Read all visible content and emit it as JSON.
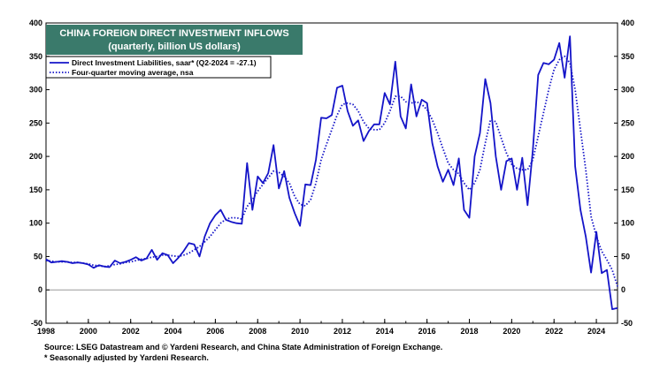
{
  "colors": {
    "series": "#1414c8",
    "title_box": "#3a7a6b",
    "title_text": "#ffffff",
    "zero_line": "#999999",
    "gridline": "none"
  },
  "chart_data": {
    "type": "line",
    "title": "CHINA FOREIGN DIRECT INVESTMENT INFLOWS",
    "subtitle": "(quarterly, billion US dollars)",
    "xlim": [
      1998,
      2025
    ],
    "ylim": [
      -50,
      400
    ],
    "x_ticks": [
      "1998",
      "2000",
      "2002",
      "2004",
      "2006",
      "2008",
      "2010",
      "2012",
      "2014",
      "2016",
      "2018",
      "2020",
      "2022",
      "2024"
    ],
    "y_ticks": [
      "400",
      "350",
      "300",
      "250",
      "200",
      "150",
      "100",
      "50",
      "0",
      "-50"
    ],
    "grid": false,
    "legend_position": "top-left",
    "series": [
      {
        "name": "Direct Investment Liabilities, saar* (Q2-2024 = -27.1)",
        "style": "solid",
        "points": [
          [
            1998.0,
            46
          ],
          [
            1998.25,
            41
          ],
          [
            1998.5,
            42
          ],
          [
            1998.75,
            43
          ],
          [
            1999.0,
            42
          ],
          [
            1999.25,
            40
          ],
          [
            1999.5,
            41
          ],
          [
            1999.75,
            40
          ],
          [
            2000.0,
            38
          ],
          [
            2000.25,
            33
          ],
          [
            2000.5,
            37
          ],
          [
            2000.75,
            35
          ],
          [
            2001.0,
            34
          ],
          [
            2001.25,
            44
          ],
          [
            2001.5,
            40
          ],
          [
            2001.75,
            42
          ],
          [
            2002.0,
            45
          ],
          [
            2002.25,
            49
          ],
          [
            2002.5,
            44
          ],
          [
            2002.75,
            47
          ],
          [
            2003.0,
            60
          ],
          [
            2003.25,
            45
          ],
          [
            2003.5,
            55
          ],
          [
            2003.75,
            52
          ],
          [
            2004.0,
            40
          ],
          [
            2004.25,
            48
          ],
          [
            2004.5,
            58
          ],
          [
            2004.75,
            70
          ],
          [
            2005.0,
            68
          ],
          [
            2005.25,
            50
          ],
          [
            2005.5,
            80
          ],
          [
            2005.75,
            100
          ],
          [
            2006.0,
            112
          ],
          [
            2006.25,
            120
          ],
          [
            2006.5,
            105
          ],
          [
            2006.75,
            102
          ],
          [
            2007.0,
            100
          ],
          [
            2007.25,
            99
          ],
          [
            2007.5,
            190
          ],
          [
            2007.75,
            120
          ],
          [
            2008.0,
            170
          ],
          [
            2008.25,
            160
          ],
          [
            2008.5,
            175
          ],
          [
            2008.75,
            217
          ],
          [
            2009.0,
            152
          ],
          [
            2009.25,
            178
          ],
          [
            2009.5,
            138
          ],
          [
            2009.75,
            115
          ],
          [
            2010.0,
            96
          ],
          [
            2010.25,
            158
          ],
          [
            2010.5,
            157
          ],
          [
            2010.75,
            195
          ],
          [
            2011.0,
            258
          ],
          [
            2011.25,
            257
          ],
          [
            2011.5,
            262
          ],
          [
            2011.75,
            303
          ],
          [
            2012.0,
            306
          ],
          [
            2012.25,
            268
          ],
          [
            2012.5,
            246
          ],
          [
            2012.75,
            254
          ],
          [
            2013.0,
            223
          ],
          [
            2013.25,
            238
          ],
          [
            2013.5,
            248
          ],
          [
            2013.75,
            248
          ],
          [
            2014.0,
            295
          ],
          [
            2014.25,
            278
          ],
          [
            2014.5,
            342
          ],
          [
            2014.75,
            260
          ],
          [
            2015.0,
            242
          ],
          [
            2015.25,
            308
          ],
          [
            2015.5,
            260
          ],
          [
            2015.75,
            285
          ],
          [
            2016.0,
            280
          ],
          [
            2016.25,
            220
          ],
          [
            2016.5,
            185
          ],
          [
            2016.75,
            162
          ],
          [
            2017.0,
            180
          ],
          [
            2017.25,
            157
          ],
          [
            2017.5,
            197
          ],
          [
            2017.75,
            120
          ],
          [
            2018.0,
            108
          ],
          [
            2018.25,
            200
          ],
          [
            2018.5,
            235
          ],
          [
            2018.75,
            316
          ],
          [
            2019.0,
            280
          ],
          [
            2019.25,
            200
          ],
          [
            2019.5,
            150
          ],
          [
            2019.75,
            193
          ],
          [
            2020.0,
            197
          ],
          [
            2020.25,
            150
          ],
          [
            2020.5,
            198
          ],
          [
            2020.75,
            127
          ],
          [
            2021.0,
            210
          ],
          [
            2021.25,
            322
          ],
          [
            2021.5,
            340
          ],
          [
            2021.75,
            338
          ],
          [
            2022.0,
            345
          ],
          [
            2022.25,
            370
          ],
          [
            2022.5,
            318
          ],
          [
            2022.75,
            380
          ],
          [
            2023.0,
            185
          ],
          [
            2023.25,
            120
          ],
          [
            2023.5,
            80
          ],
          [
            2023.75,
            26
          ],
          [
            2024.0,
            87
          ],
          [
            2024.25,
            25
          ],
          [
            2024.5,
            30
          ],
          [
            2024.75,
            -29
          ],
          [
            2025.0,
            -27.1
          ]
        ]
      },
      {
        "name": "Four-quarter moving average, nsa",
        "style": "dotted",
        "points": [
          [
            1998.0,
            44
          ],
          [
            1998.25,
            43
          ],
          [
            1998.5,
            42
          ],
          [
            1998.75,
            42
          ],
          [
            1999.0,
            42
          ],
          [
            1999.25,
            41
          ],
          [
            1999.5,
            41
          ],
          [
            1999.75,
            40
          ],
          [
            2000.0,
            39
          ],
          [
            2000.25,
            37
          ],
          [
            2000.5,
            36
          ],
          [
            2000.75,
            35
          ],
          [
            2001.0,
            36
          ],
          [
            2001.25,
            38
          ],
          [
            2001.5,
            39
          ],
          [
            2001.75,
            41
          ],
          [
            2002.0,
            42
          ],
          [
            2002.25,
            44
          ],
          [
            2002.5,
            46
          ],
          [
            2002.75,
            47
          ],
          [
            2003.0,
            49
          ],
          [
            2003.25,
            50
          ],
          [
            2003.5,
            52
          ],
          [
            2003.75,
            52
          ],
          [
            2004.0,
            51
          ],
          [
            2004.25,
            50
          ],
          [
            2004.5,
            52
          ],
          [
            2004.75,
            55
          ],
          [
            2005.0,
            60
          ],
          [
            2005.25,
            65
          ],
          [
            2005.5,
            72
          ],
          [
            2005.75,
            80
          ],
          [
            2006.0,
            90
          ],
          [
            2006.25,
            100
          ],
          [
            2006.5,
            106
          ],
          [
            2006.75,
            108
          ],
          [
            2007.0,
            108
          ],
          [
            2007.25,
            106
          ],
          [
            2007.5,
            125
          ],
          [
            2007.75,
            135
          ],
          [
            2008.0,
            148
          ],
          [
            2008.25,
            158
          ],
          [
            2008.5,
            168
          ],
          [
            2008.75,
            178
          ],
          [
            2009.0,
            176
          ],
          [
            2009.25,
            170
          ],
          [
            2009.5,
            160
          ],
          [
            2009.75,
            140
          ],
          [
            2010.0,
            128
          ],
          [
            2010.25,
            126
          ],
          [
            2010.5,
            135
          ],
          [
            2010.75,
            160
          ],
          [
            2011.0,
            195
          ],
          [
            2011.25,
            218
          ],
          [
            2011.5,
            240
          ],
          [
            2011.75,
            262
          ],
          [
            2012.0,
            278
          ],
          [
            2012.25,
            280
          ],
          [
            2012.5,
            278
          ],
          [
            2012.75,
            268
          ],
          [
            2013.0,
            252
          ],
          [
            2013.25,
            242
          ],
          [
            2013.5,
            240
          ],
          [
            2013.75,
            240
          ],
          [
            2014.0,
            250
          ],
          [
            2014.25,
            268
          ],
          [
            2014.5,
            290
          ],
          [
            2014.75,
            290
          ],
          [
            2015.0,
            282
          ],
          [
            2015.25,
            280
          ],
          [
            2015.5,
            282
          ],
          [
            2015.75,
            278
          ],
          [
            2016.0,
            270
          ],
          [
            2016.25,
            255
          ],
          [
            2016.5,
            235
          ],
          [
            2016.75,
            212
          ],
          [
            2017.0,
            190
          ],
          [
            2017.25,
            180
          ],
          [
            2017.5,
            174
          ],
          [
            2017.75,
            160
          ],
          [
            2018.0,
            150
          ],
          [
            2018.25,
            160
          ],
          [
            2018.5,
            180
          ],
          [
            2018.75,
            220
          ],
          [
            2019.0,
            255
          ],
          [
            2019.25,
            252
          ],
          [
            2019.5,
            228
          ],
          [
            2019.75,
            205
          ],
          [
            2020.0,
            188
          ],
          [
            2020.25,
            182
          ],
          [
            2020.5,
            180
          ],
          [
            2020.75,
            180
          ],
          [
            2021.0,
            195
          ],
          [
            2021.25,
            230
          ],
          [
            2021.5,
            265
          ],
          [
            2021.75,
            300
          ],
          [
            2022.0,
            330
          ],
          [
            2022.25,
            345
          ],
          [
            2022.5,
            350
          ],
          [
            2022.75,
            340
          ],
          [
            2023.0,
            300
          ],
          [
            2023.25,
            240
          ],
          [
            2023.5,
            180
          ],
          [
            2023.75,
            110
          ],
          [
            2024.0,
            80
          ],
          [
            2024.25,
            58
          ],
          [
            2024.5,
            45
          ],
          [
            2024.75,
            30
          ],
          [
            2025.0,
            5
          ]
        ]
      }
    ]
  },
  "footer": {
    "source": "Source: LSEG Datastream and © Yardeni Research, and China State Administration of Foreign Exchange.",
    "note": "* Seasonally adjusted by Yardeni Research."
  }
}
